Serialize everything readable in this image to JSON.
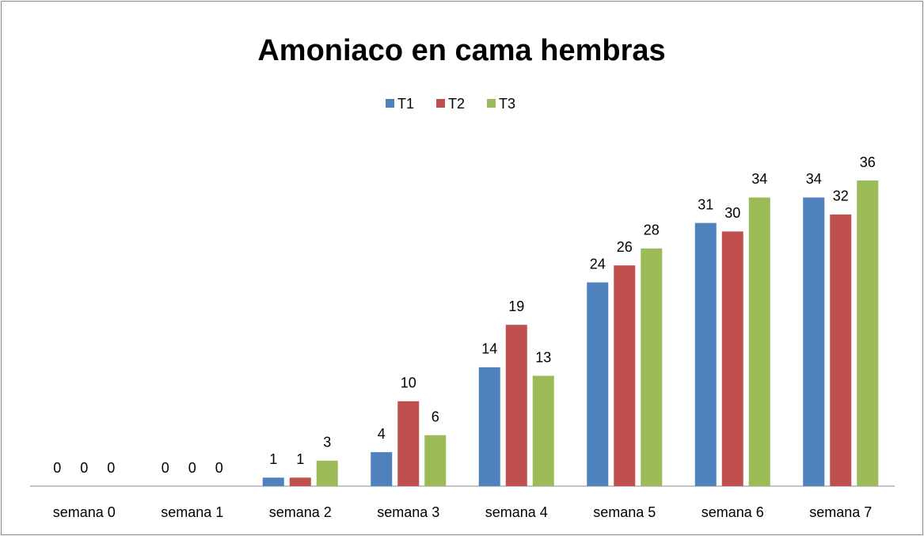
{
  "chart_data": {
    "type": "bar",
    "title": "Amoniaco en cama hembras",
    "categories": [
      "semana 0",
      "semana 1",
      "semana 2",
      "semana 3",
      "semana 4",
      "semana 5",
      "semana 6",
      "semana 7"
    ],
    "series": [
      {
        "name": "T1",
        "color": "#4f81bd",
        "values": [
          0,
          0,
          1,
          4,
          14,
          24,
          31,
          34
        ]
      },
      {
        "name": "T2",
        "color": "#c0504d",
        "values": [
          0,
          0,
          1,
          10,
          19,
          26,
          30,
          32
        ]
      },
      {
        "name": "T3",
        "color": "#9bbb59",
        "values": [
          0,
          0,
          3,
          6,
          13,
          28,
          34,
          36
        ]
      }
    ],
    "legend": "top"
  }
}
